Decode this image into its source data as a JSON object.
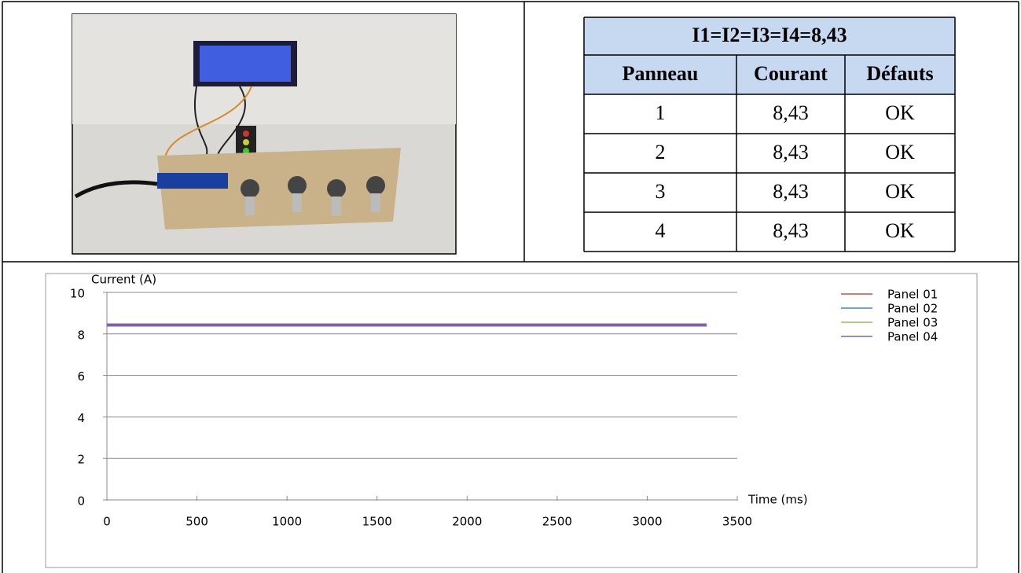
{
  "table": {
    "title": "I1=I2=I3=I4=8,43",
    "header": [
      "Panneau",
      "Courant",
      "Défauts"
    ],
    "rows": [
      [
        "1",
        "8,43",
        "OK"
      ],
      [
        "2",
        "8,43",
        "OK"
      ],
      [
        "3",
        "8,43",
        "OK"
      ],
      [
        "4",
        "8,43",
        "OK"
      ]
    ]
  },
  "chart_data": {
    "type": "line",
    "y_label": "Current (A)",
    "x_label": "Time (ms)",
    "x": [
      0,
      3330
    ],
    "series": [
      {
        "name": "Panel 01",
        "color": "#c0504d",
        "values": [
          8.43,
          8.43
        ]
      },
      {
        "name": "Panel 02",
        "color": "#4f81bd",
        "values": [
          8.43,
          8.43
        ]
      },
      {
        "name": "Panel 03",
        "color": "#9bbb59",
        "values": [
          8.43,
          8.43
        ]
      },
      {
        "name": "Panel 04",
        "color": "#8064a2",
        "values": [
          8.43,
          8.43
        ]
      }
    ],
    "xlim": [
      0,
      3500
    ],
    "xticks": [
      0,
      500,
      1000,
      1500,
      2000,
      2500,
      3000,
      3500
    ],
    "ylim": [
      0,
      10
    ],
    "yticks": [
      0,
      2,
      4,
      6,
      8,
      10
    ],
    "grid": true,
    "legend": "top-right"
  }
}
